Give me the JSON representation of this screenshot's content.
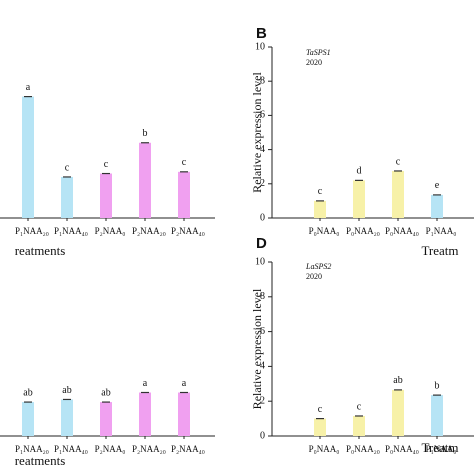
{
  "chart_data": [
    {
      "type": "bar",
      "panel": null,
      "xlabel": "reatments",
      "ylim": [
        0,
        10
      ],
      "categories": [
        "P₁NAA₂₀",
        "P₁NAA₄₀",
        "P₂NAA₀",
        "P₂NAA₂₀",
        "P₂NAA₄₀"
      ],
      "values": [
        7.1,
        2.4,
        2.6,
        4.4,
        2.7
      ],
      "letters": [
        "a",
        "c",
        "c",
        "b",
        "c"
      ],
      "colors": [
        "#b6e4f5",
        "#b6e4f5",
        "#f0a0f0",
        "#f0a0f0",
        "#f0a0f0"
      ]
    },
    {
      "type": "bar",
      "panel": "B",
      "annotation": "TaSPS1",
      "year": "2020",
      "ylabel": "Relative expression level",
      "xlabel": "Treatm",
      "ylim": [
        0,
        10
      ],
      "yticks": [
        0,
        2,
        4,
        6,
        8,
        10
      ],
      "categories": [
        "P₀NAA₀",
        "P₀NAA₂₀",
        "P₀NAA₄₀",
        "P₁NAA₀"
      ],
      "values": [
        1.0,
        2.2,
        2.75,
        1.35
      ],
      "letters": [
        "c",
        "d",
        "c",
        "e"
      ],
      "colors": [
        "#f7f1a8",
        "#f7f1a8",
        "#f7f1a8",
        "#b6e4f5"
      ]
    },
    {
      "type": "bar",
      "panel": null,
      "xlabel": "reatments",
      "ylim": [
        0,
        10
      ],
      "categories": [
        "P₁NAA₂₀",
        "P₁NAA₄₀",
        "P₂NAA₀",
        "P₂NAA₂₀",
        "P₂NAA₄₀"
      ],
      "values": [
        1.95,
        2.1,
        1.95,
        2.5,
        2.5
      ],
      "letters": [
        "ab",
        "ab",
        "ab",
        "a",
        "a"
      ],
      "colors": [
        "#b6e4f5",
        "#b6e4f5",
        "#f0a0f0",
        "#f0a0f0",
        "#f0a0f0"
      ]
    },
    {
      "type": "bar",
      "panel": "D",
      "annotation": "LaSPS2",
      "year": "2020",
      "ylabel": "Relative expression level",
      "xlabel": "Treatm",
      "ylim": [
        0,
        10
      ],
      "yticks": [
        0,
        2,
        4,
        6,
        8,
        10
      ],
      "categories": [
        "P₀NAA₀",
        "P₀NAA₂₀",
        "P₀NAA₄₀",
        "P₁NAA₀"
      ],
      "values": [
        1.0,
        1.15,
        2.65,
        2.35
      ],
      "letters": [
        "c",
        "c",
        "ab",
        "b"
      ],
      "colors": [
        "#f7f1a8",
        "#f7f1a8",
        "#f7f1a8",
        "#b6e4f5"
      ]
    }
  ]
}
